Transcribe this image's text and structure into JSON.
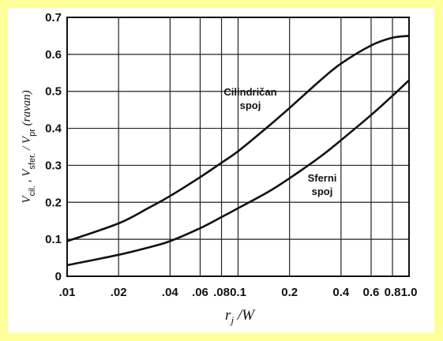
{
  "chart_data": {
    "type": "line",
    "x_scale": "log",
    "y_scale": "linear",
    "xlim": [
      0.01,
      1.0
    ],
    "ylim": [
      0,
      0.7
    ],
    "grid": true,
    "xlabel": "r_j /W",
    "ylabel": "V_cil. , V_sfer. / V_pr (ravan)",
    "x_ticks": [
      0.01,
      0.02,
      0.04,
      0.06,
      0.08,
      0.1,
      0.2,
      0.4,
      0.6,
      0.8,
      1.0
    ],
    "x_tick_labels": [
      ".01",
      ".02",
      ".04",
      ".06",
      ".08",
      "0.1",
      "0.2",
      "0.4",
      "0.6",
      "0.8",
      "1.0"
    ],
    "y_ticks": [
      0,
      0.1,
      0.2,
      0.3,
      0.4,
      0.5,
      0.6,
      0.7
    ],
    "y_tick_labels": [
      "0",
      "0.1",
      "0.2",
      "0.3",
      "0.4",
      "0.5",
      "0.6",
      "0.7"
    ],
    "series": [
      {
        "name": "Cilindričan spoj",
        "label_lines": [
          "Cilindričan",
          "spoj"
        ],
        "x": [
          0.01,
          0.02,
          0.03,
          0.04,
          0.06,
          0.08,
          0.1,
          0.15,
          0.2,
          0.3,
          0.4,
          0.6,
          0.8,
          1.0
        ],
        "y": [
          0.095,
          0.143,
          0.185,
          0.217,
          0.268,
          0.307,
          0.338,
          0.405,
          0.455,
          0.528,
          0.575,
          0.624,
          0.645,
          0.65
        ]
      },
      {
        "name": "Sferni spoj",
        "label_lines": [
          "Sferni",
          "spoj"
        ],
        "x": [
          0.01,
          0.02,
          0.03,
          0.04,
          0.06,
          0.08,
          0.1,
          0.15,
          0.2,
          0.3,
          0.4,
          0.6,
          0.8,
          1.0
        ],
        "y": [
          0.03,
          0.058,
          0.078,
          0.095,
          0.13,
          0.16,
          0.184,
          0.228,
          0.265,
          0.322,
          0.368,
          0.436,
          0.488,
          0.53
        ]
      }
    ]
  }
}
